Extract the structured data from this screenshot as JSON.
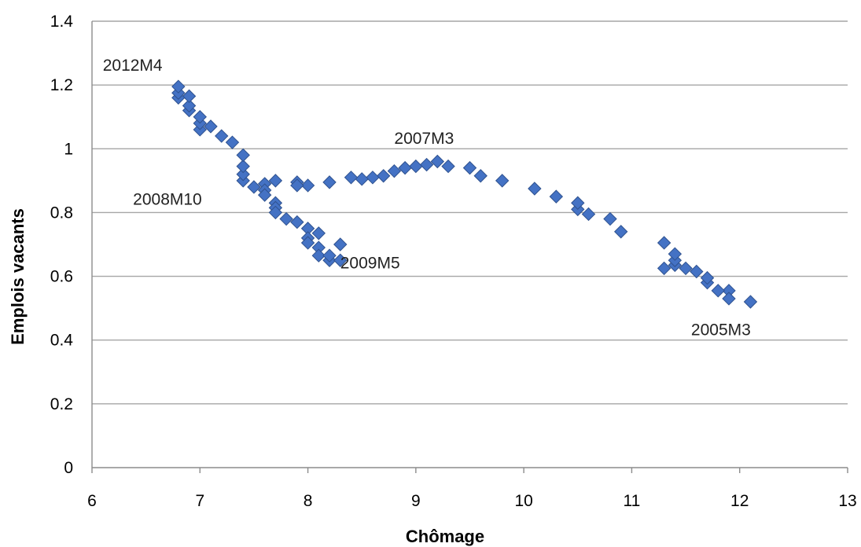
{
  "chart_data": {
    "type": "scatter",
    "title": "",
    "xlabel": "Chômage",
    "ylabel": "Emplois vacants",
    "xlim": [
      6,
      13
    ],
    "ylim": [
      0,
      1.4
    ],
    "xticks": [
      "6",
      "7",
      "8",
      "9",
      "10",
      "11",
      "12",
      "13"
    ],
    "yticks": [
      "0",
      "0.2",
      "0.4",
      "0.6",
      "0.8",
      "1",
      "1.2",
      "1.4"
    ],
    "grid": "horizontal",
    "legend": "none",
    "marker": "diamond",
    "color": "#4472c4",
    "points": [
      {
        "x": 12.1,
        "y": 0.52
      },
      {
        "x": 11.9,
        "y": 0.555
      },
      {
        "x": 11.9,
        "y": 0.53
      },
      {
        "x": 11.8,
        "y": 0.555
      },
      {
        "x": 11.7,
        "y": 0.58
      },
      {
        "x": 11.7,
        "y": 0.595
      },
      {
        "x": 11.6,
        "y": 0.615
      },
      {
        "x": 11.5,
        "y": 0.625
      },
      {
        "x": 11.4,
        "y": 0.635
      },
      {
        "x": 11.4,
        "y": 0.65
      },
      {
        "x": 11.4,
        "y": 0.67
      },
      {
        "x": 11.3,
        "y": 0.625
      },
      {
        "x": 11.3,
        "y": 0.705
      },
      {
        "x": 10.9,
        "y": 0.74
      },
      {
        "x": 10.8,
        "y": 0.78
      },
      {
        "x": 10.6,
        "y": 0.795
      },
      {
        "x": 10.5,
        "y": 0.81
      },
      {
        "x": 10.5,
        "y": 0.83
      },
      {
        "x": 10.3,
        "y": 0.85
      },
      {
        "x": 10.1,
        "y": 0.875
      },
      {
        "x": 9.8,
        "y": 0.9
      },
      {
        "x": 9.6,
        "y": 0.915
      },
      {
        "x": 9.5,
        "y": 0.94
      },
      {
        "x": 9.3,
        "y": 0.945
      },
      {
        "x": 9.2,
        "y": 0.96
      },
      {
        "x": 9.1,
        "y": 0.95
      },
      {
        "x": 9.0,
        "y": 0.945
      },
      {
        "x": 8.9,
        "y": 0.94
      },
      {
        "x": 8.8,
        "y": 0.93
      },
      {
        "x": 8.7,
        "y": 0.915
      },
      {
        "x": 8.6,
        "y": 0.91
      },
      {
        "x": 8.5,
        "y": 0.905
      },
      {
        "x": 8.4,
        "y": 0.91
      },
      {
        "x": 8.2,
        "y": 0.895
      },
      {
        "x": 8.0,
        "y": 0.885
      },
      {
        "x": 7.9,
        "y": 0.895
      },
      {
        "x": 7.9,
        "y": 0.885
      },
      {
        "x": 7.7,
        "y": 0.9
      },
      {
        "x": 7.6,
        "y": 0.89
      },
      {
        "x": 7.6,
        "y": 0.87
      },
      {
        "x": 7.6,
        "y": 0.855
      },
      {
        "x": 7.5,
        "y": 0.88
      },
      {
        "x": 7.4,
        "y": 0.9
      },
      {
        "x": 7.4,
        "y": 0.92
      },
      {
        "x": 7.4,
        "y": 0.945
      },
      {
        "x": 7.4,
        "y": 0.98
      },
      {
        "x": 7.3,
        "y": 1.02
      },
      {
        "x": 7.2,
        "y": 1.04
      },
      {
        "x": 7.1,
        "y": 1.07
      },
      {
        "x": 7.0,
        "y": 1.06
      },
      {
        "x": 7.0,
        "y": 1.08
      },
      {
        "x": 7.0,
        "y": 1.1
      },
      {
        "x": 6.9,
        "y": 1.12
      },
      {
        "x": 6.9,
        "y": 1.135
      },
      {
        "x": 6.9,
        "y": 1.165
      },
      {
        "x": 6.8,
        "y": 1.16
      },
      {
        "x": 6.8,
        "y": 1.175
      },
      {
        "x": 6.8,
        "y": 1.195
      },
      {
        "x": 7.7,
        "y": 0.83
      },
      {
        "x": 7.7,
        "y": 0.815
      },
      {
        "x": 7.7,
        "y": 0.8
      },
      {
        "x": 7.8,
        "y": 0.78
      },
      {
        "x": 7.9,
        "y": 0.77
      },
      {
        "x": 8.0,
        "y": 0.75
      },
      {
        "x": 8.0,
        "y": 0.72
      },
      {
        "x": 8.0,
        "y": 0.705
      },
      {
        "x": 8.1,
        "y": 0.735
      },
      {
        "x": 8.1,
        "y": 0.69
      },
      {
        "x": 8.1,
        "y": 0.665
      },
      {
        "x": 8.2,
        "y": 0.65
      },
      {
        "x": 8.2,
        "y": 0.665
      },
      {
        "x": 8.3,
        "y": 0.65
      },
      {
        "x": 8.3,
        "y": 0.7
      }
    ],
    "annotations": [
      {
        "text": "2012M4",
        "x": 6.1,
        "y": 1.245
      },
      {
        "text": "2007M3",
        "x": 8.8,
        "y": 1.015
      },
      {
        "text": "2008M10",
        "x": 6.38,
        "y": 0.825
      },
      {
        "text": "2009M5",
        "x": 8.3,
        "y": 0.625
      },
      {
        "text": "2005M3",
        "x": 11.55,
        "y": 0.415
      }
    ]
  }
}
